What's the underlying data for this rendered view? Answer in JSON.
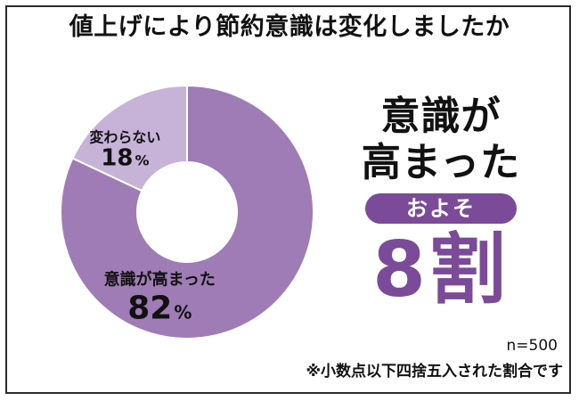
{
  "title": "値上げにより節約意識は変化しましたか",
  "chart_data": {
    "type": "pie",
    "slices": [
      {
        "label": "意識が高まった",
        "value": 82,
        "display": "82",
        "unit": "%",
        "color": "#a07cb6"
      },
      {
        "label": "変わらない",
        "value": 18,
        "display": "18",
        "unit": "%",
        "color": "#c7b3d8"
      }
    ],
    "donut": true
  },
  "callout": {
    "line1": "意識が",
    "line2": "高まった",
    "pill": "およそ",
    "big": "8割",
    "pill_color": "#7b4a99",
    "big_color": "#7b4a99"
  },
  "sample_size": "n=500",
  "rounding_note": "※小数点以下四捨五入された割合です"
}
